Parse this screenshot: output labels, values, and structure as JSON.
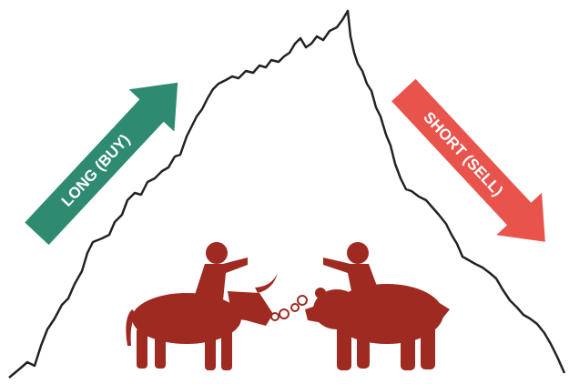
{
  "labels": {
    "long": "LONG (BUY)",
    "short": "SHORT (SELL)"
  }
}
